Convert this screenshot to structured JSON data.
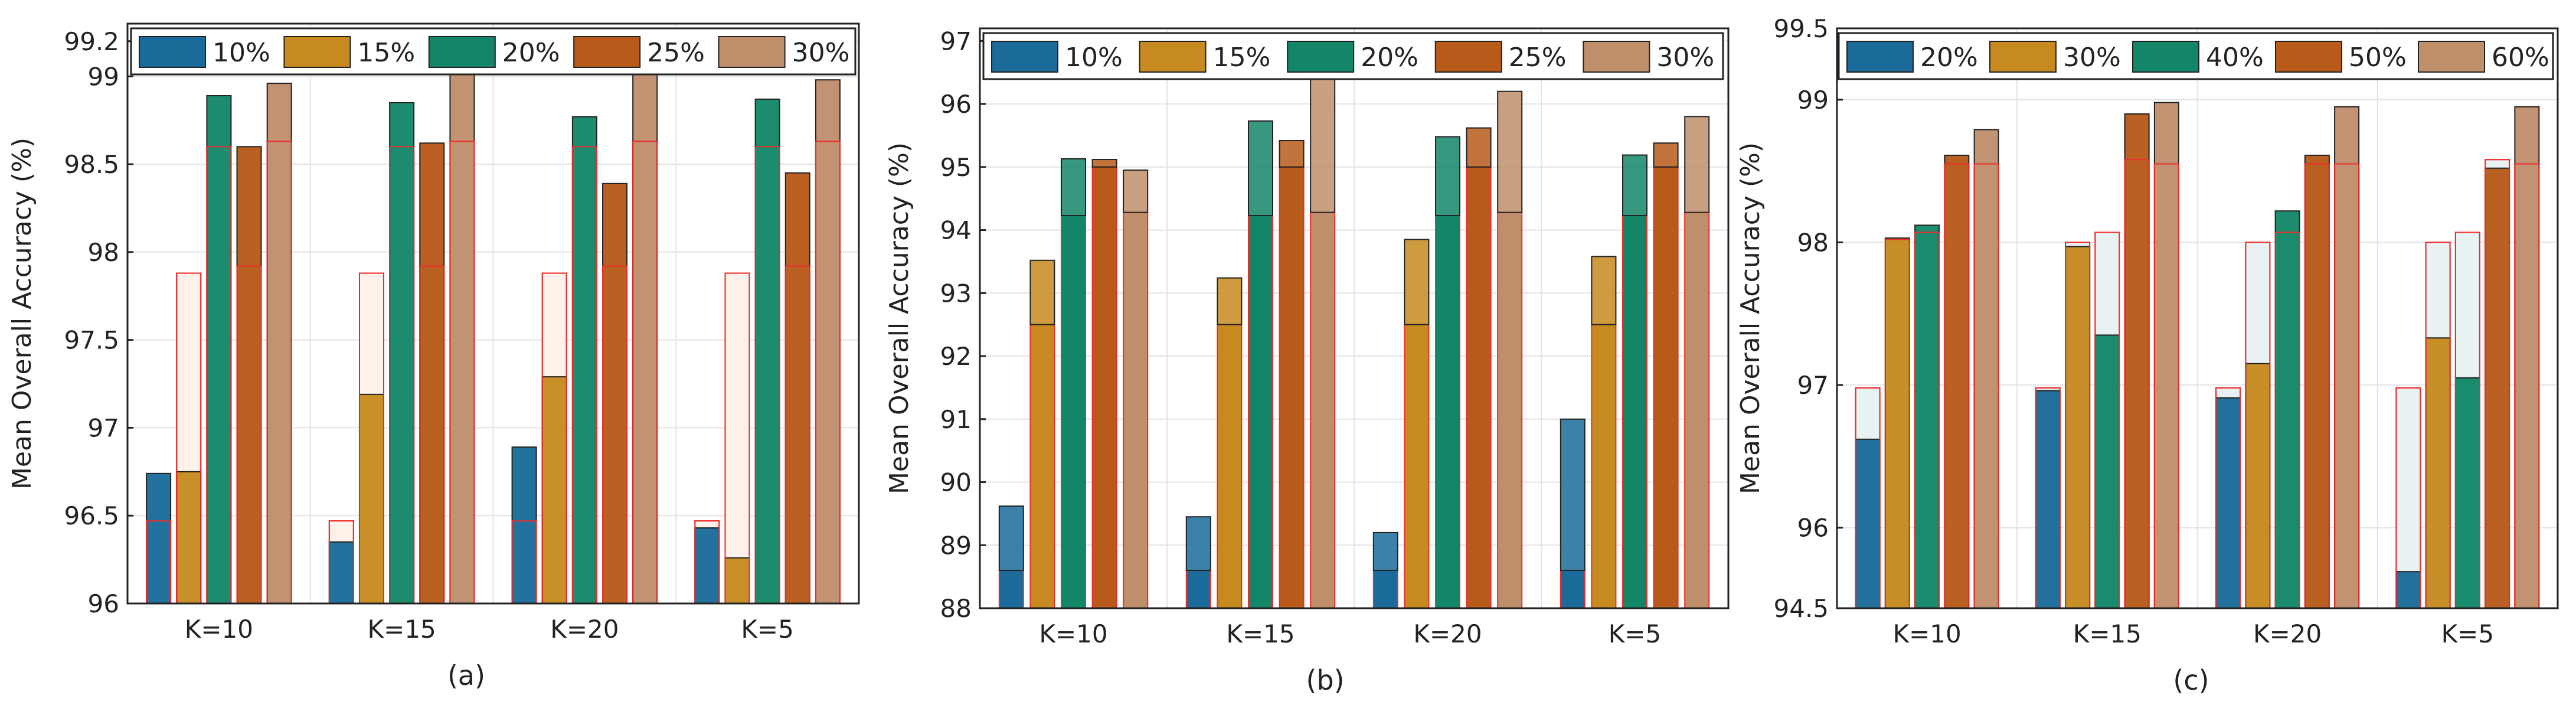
{
  "figure": {
    "palette": [
      "#1a6b99",
      "#c78a20",
      "#138668",
      "#b85a1a",
      "#bf8f6c"
    ],
    "baseline_outline": "#ee2b2b",
    "baseline_fill_light": "#fdf1ea",
    "baseline_fill_cool": "#e8f2f3"
  },
  "chart_data": [
    {
      "type": "bar",
      "panel_label": "(a)",
      "ylabel": "Mean Overall Accuracy (%)",
      "ylim": [
        96,
        99.3
      ],
      "yticks": [
        96,
        96.5,
        97,
        97.5,
        98,
        98.5,
        99,
        99.2
      ],
      "ytick_labels": [
        "96",
        "96.5",
        "97",
        "97.5",
        "98",
        "98.5",
        "99",
        "99.2"
      ],
      "categories": [
        "K=10",
        "K=15",
        "K=20",
        "K=5"
      ],
      "baseline_style": "light",
      "series": [
        {
          "name": "10%",
          "values": [
            96.74,
            96.35,
            96.89,
            96.43
          ],
          "baseline": [
            96.47,
            96.47,
            96.47,
            96.47
          ]
        },
        {
          "name": "15%",
          "values": [
            96.75,
            97.19,
            97.29,
            96.26
          ],
          "baseline": [
            97.88,
            97.88,
            97.88,
            97.88
          ]
        },
        {
          "name": "20%",
          "values": [
            98.89,
            98.85,
            98.77,
            98.87
          ],
          "baseline": [
            98.6,
            98.6,
            98.6,
            98.6
          ]
        },
        {
          "name": "25%",
          "values": [
            98.6,
            98.62,
            98.39,
            98.45
          ],
          "baseline": [
            97.92,
            97.92,
            97.92,
            97.92
          ]
        },
        {
          "name": "30%",
          "values": [
            98.96,
            99.11,
            99.02,
            98.98
          ],
          "baseline": [
            98.63,
            98.63,
            98.63,
            98.63
          ]
        }
      ]
    },
    {
      "type": "bar",
      "panel_label": "(b)",
      "ylabel": "Mean Overall Accuracy (%)",
      "ylim": [
        88,
        97.2
      ],
      "yticks": [
        88,
        89,
        90,
        91,
        92,
        93,
        94,
        95,
        96,
        97
      ],
      "ytick_labels": [
        "88",
        "89",
        "90",
        "91",
        "92",
        "93",
        "94",
        "95",
        "96",
        "97"
      ],
      "categories": [
        "K=10",
        "K=15",
        "K=20",
        "K=5"
      ],
      "baseline_style": "dark",
      "series": [
        {
          "name": "10%",
          "values": [
            89.62,
            89.45,
            89.2,
            91.0
          ],
          "baseline": [
            88.6,
            88.6,
            88.6,
            88.6
          ]
        },
        {
          "name": "15%",
          "values": [
            93.52,
            93.24,
            93.85,
            93.58
          ],
          "baseline": [
            92.5,
            92.5,
            92.5,
            92.5
          ]
        },
        {
          "name": "20%",
          "values": [
            95.13,
            95.73,
            95.48,
            95.19
          ],
          "baseline": [
            94.23,
            94.23,
            94.23,
            94.23
          ]
        },
        {
          "name": "25%",
          "values": [
            95.12,
            95.42,
            95.62,
            95.38
          ],
          "baseline": [
            95.0,
            95.0,
            95.0,
            95.0
          ]
        },
        {
          "name": "30%",
          "values": [
            94.95,
            96.55,
            96.2,
            95.8
          ],
          "baseline": [
            94.28,
            94.28,
            94.28,
            94.28
          ]
        }
      ]
    },
    {
      "type": "bar",
      "panel_label": "(c)",
      "ylabel": "Mean Overall Accuracy (%)",
      "ylim": [
        94.5,
        99.5
      ],
      "yticks": [
        94.5,
        96,
        97,
        98,
        99,
        99.5
      ],
      "ytick_labels": [
        "94.5",
        "96",
        "97",
        "98",
        "99",
        "99.5"
      ],
      "y_breaks": [
        94.5,
        96,
        99.5
      ],
      "categories": [
        "K=10",
        "K=15",
        "K=20",
        "K=5"
      ],
      "baseline_style": "cool",
      "series": [
        {
          "name": "20%",
          "values": [
            96.62,
            96.96,
            96.91,
            95.18
          ],
          "baseline": [
            96.98,
            96.98,
            96.98,
            96.98
          ]
        },
        {
          "name": "30%",
          "values": [
            98.03,
            97.97,
            97.15,
            97.33
          ],
          "baseline": [
            98.02,
            98.0,
            98.0,
            98.0
          ]
        },
        {
          "name": "40%",
          "values": [
            98.12,
            97.35,
            98.22,
            97.05
          ],
          "baseline": [
            98.07,
            98.07,
            98.07,
            98.07
          ]
        },
        {
          "name": "50%",
          "values": [
            98.61,
            98.9,
            98.61,
            98.52
          ],
          "baseline": [
            98.55,
            98.58,
            98.55,
            98.58
          ]
        },
        {
          "name": "60%",
          "values": [
            98.79,
            98.98,
            98.95,
            98.95
          ],
          "baseline": [
            98.55,
            98.55,
            98.55,
            98.55
          ]
        }
      ]
    }
  ]
}
